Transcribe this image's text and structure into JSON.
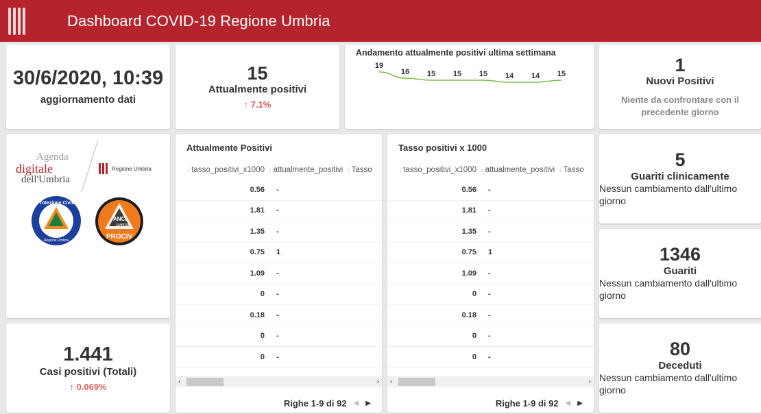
{
  "header": {
    "title": "Dashboard COVID-19 Regione Umbria",
    "logo_icon": "umbria-columns-icon"
  },
  "cards": {
    "update": {
      "value": "30/6/2020, 10:39",
      "label": "aggiornamento dati"
    },
    "attualmente": {
      "value": "15",
      "label": "Attualmente positivi",
      "trend": "↑ 7.1%"
    },
    "trend_chart": {
      "title": "Andamento attualmente positivi ultima settimana",
      "values": [
        19,
        16,
        15,
        15,
        15,
        14,
        14,
        15
      ],
      "line_color": "#7bbf4a"
    },
    "nuovi": {
      "value": "1",
      "label": "Nuovi Positivi",
      "note": "Niente da confrontare con il precedente giorno"
    },
    "casi_totali": {
      "value": "1.441",
      "label": "Casi positivi (Totali)",
      "trend": "↑ 0.069%"
    },
    "guariti_clin": {
      "value": "5",
      "label": "Guariti clinicamente",
      "note": "Nessun cambiamento dall'ultimo giorno"
    },
    "guariti": {
      "value": "1346",
      "label": "Guariti",
      "note": "Nessun cambiamento dall'ultimo giorno"
    },
    "deceduti": {
      "value": "80",
      "label": "Deceduti",
      "note": "Nessun cambiamento dall'ultimo giorno"
    }
  },
  "logos": {
    "agenda_line1": "Agenda",
    "agenda_line2": "digitale",
    "agenda_line3": "dell'Umbria",
    "regione": "Regione Umbria",
    "protezione_top": "Protezione Civile",
    "protezione_bottom": "Regione Umbria",
    "anci_line1": "ANCI",
    "anci_line2": "UMBRIA",
    "anci_line3": "PROCIV"
  },
  "tables": [
    {
      "title": "Attualmente Positivi",
      "columns": [
        "tasso_positivi_x1000",
        "attualmente_positivi",
        "Tasso"
      ],
      "rows": [
        [
          "0.56",
          "-"
        ],
        [
          "1.81",
          "-"
        ],
        [
          "1.35",
          "-"
        ],
        [
          "0.75",
          "1"
        ],
        [
          "1.09",
          "-"
        ],
        [
          "0",
          "-"
        ],
        [
          "0.18",
          "-"
        ],
        [
          "0",
          "-"
        ],
        [
          "0",
          "-"
        ]
      ],
      "pager": "Righe 1-9 di 92"
    },
    {
      "title": "Tasso positivi x 1000",
      "columns": [
        "tasso_positivi_x1000",
        "attualmente_positivi",
        "Tasso"
      ],
      "rows": [
        [
          "0.56",
          "-"
        ],
        [
          "1.81",
          "-"
        ],
        [
          "1.35",
          "-"
        ],
        [
          "0.75",
          "1"
        ],
        [
          "1.09",
          "-"
        ],
        [
          "0",
          "-"
        ],
        [
          "0.18",
          "-"
        ],
        [
          "0",
          "-"
        ],
        [
          "0",
          "-"
        ]
      ],
      "pager": "Righe 1-9 di 92"
    }
  ]
}
